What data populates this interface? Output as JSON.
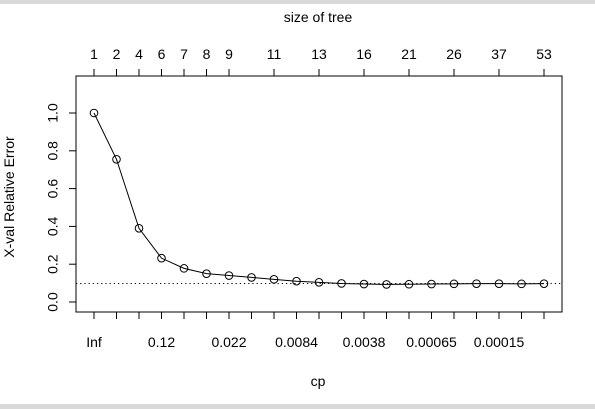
{
  "chart_data": {
    "type": "scatter",
    "title": "",
    "top_axis_label": "size of tree",
    "xlabel": "cp",
    "ylabel": "X-val Relative Error",
    "ylim": [
      0,
      1
    ],
    "y_ticks": [
      "0.0",
      "0.2",
      "0.4",
      "0.6",
      "0.8",
      "1.0"
    ],
    "size_of_tree": [
      1,
      2,
      4,
      6,
      7,
      8,
      9,
      10,
      11,
      12,
      13,
      14,
      16,
      18,
      21,
      23,
      26,
      30,
      37,
      45,
      53
    ],
    "size_tick_labels": [
      "1",
      "2",
      "4",
      "6",
      "7",
      "8",
      "9",
      "11",
      "13",
      "16",
      "21",
      "26",
      "37",
      "53"
    ],
    "cp_tick_labels": [
      "Inf",
      "0.12",
      "0.022",
      "0.0084",
      "0.0038",
      "0.00065",
      "0.00015"
    ],
    "series": [
      {
        "values": [
          1.0,
          0.755,
          0.39,
          0.232,
          0.178,
          0.15,
          0.14,
          0.13,
          0.12,
          0.11,
          0.104,
          0.098,
          0.095,
          0.093,
          0.094,
          0.095,
          0.096,
          0.097,
          0.097,
          0.096,
          0.097
        ]
      }
    ],
    "reference_line": 0.098,
    "grid": false
  }
}
